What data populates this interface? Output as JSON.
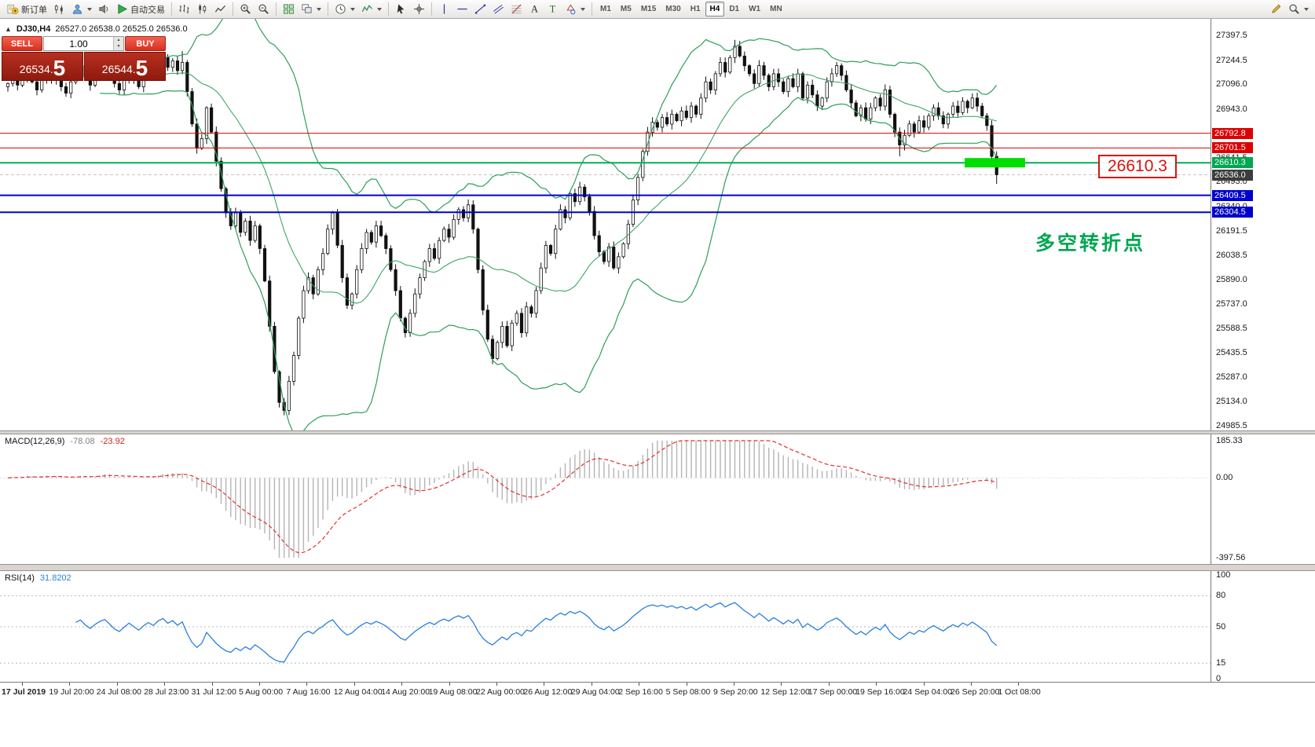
{
  "toolbar": {
    "groups": [
      {
        "name": "trade-group",
        "items": [
          {
            "name": "new-order-button",
            "icon": "new-order-icon",
            "label": "新订单"
          },
          {
            "name": "charts-button",
            "icon": "candles-icon"
          },
          {
            "name": "profiles-button",
            "icon": "person-icon",
            "caret": true
          },
          {
            "name": "alerts-button",
            "icon": "speaker-icon"
          },
          {
            "name": "autotrading-button",
            "icon": "play-icon",
            "label": "自动交易"
          }
        ]
      },
      {
        "name": "chart-type-group",
        "items": [
          {
            "name": "bar-chart-button",
            "icon": "bars-icon"
          },
          {
            "name": "candlestick-chart-button",
            "icon": "candles2-icon"
          },
          {
            "name": "line-chart-button",
            "icon": "linechart-icon"
          }
        ]
      },
      {
        "name": "zoom-group",
        "items": [
          {
            "name": "zoom-in-button",
            "icon": "zoom-in-icon"
          },
          {
            "name": "zoom-out-button",
            "icon": "zoom-out-icon"
          }
        ]
      },
      {
        "name": "window-group",
        "items": [
          {
            "name": "tile-windows-button",
            "icon": "grid-icon"
          },
          {
            "name": "arrange-windows-button",
            "icon": "cascade-icon",
            "caret": true
          }
        ]
      },
      {
        "name": "insert-group",
        "items": [
          {
            "name": "period-button",
            "icon": "clock-icon",
            "caret": true
          },
          {
            "name": "indicators-button",
            "icon": "indicator-icon",
            "caret": true
          }
        ]
      },
      {
        "name": "pointer-group",
        "items": [
          {
            "name": "cursor-button",
            "icon": "cursor-icon"
          },
          {
            "name": "crosshair-button",
            "icon": "crosshair-icon"
          }
        ]
      },
      {
        "name": "objects-group",
        "items": [
          {
            "name": "vertical-line-button",
            "icon": "vline-icon"
          },
          {
            "name": "horizontal-line-button",
            "icon": "hline-icon"
          },
          {
            "name": "trendline-button",
            "icon": "trendline-icon"
          },
          {
            "name": "channel-button",
            "icon": "channel-icon"
          },
          {
            "name": "fibonacci-button",
            "icon": "fibo-icon"
          },
          {
            "name": "text-button",
            "icon": "text-icon"
          },
          {
            "name": "label-button",
            "icon": "label-icon"
          },
          {
            "name": "shapes-button",
            "icon": "shapes-icon",
            "caret": true
          }
        ]
      }
    ],
    "timeframes": [
      "M1",
      "M5",
      "M15",
      "M30",
      "H1",
      "H4",
      "D1",
      "W1",
      "MN"
    ],
    "active_timeframe": "H4",
    "right_items": [
      {
        "name": "edit-button",
        "icon": "pencil-icon"
      },
      {
        "name": "quick-search-button",
        "icon": "search-icon",
        "caret": true
      }
    ]
  },
  "chart_header": {
    "symbol": "DJ30,H4",
    "ohlc": "26527.0 26538.0 26525.0 26536.0"
  },
  "trade_panel": {
    "sell_label": "SELL",
    "buy_label": "BUY",
    "volume": "1.00",
    "sell_price": {
      "small": "26534.",
      "big": "5"
    },
    "buy_price": {
      "small": "26544.",
      "big": "5"
    }
  },
  "annotations": {
    "callout": "26610.3",
    "turning_point": "多空转折点",
    "highlight": {
      "price": 26610.3,
      "x": 1228,
      "width": 77,
      "height": 12,
      "color": "#00dd00"
    }
  },
  "price_axis": {
    "grid_labels": [
      27397.5,
      27244.5,
      27096.0,
      26943.0,
      26641.5,
      26493.0,
      26340.0,
      26191.5,
      26038.5,
      25890.0,
      25737.0,
      25588.5,
      25435.5,
      25287.0,
      25134.0,
      24985.5
    ],
    "tags": [
      {
        "price": 26792.8,
        "label": "26792.8",
        "color": "#dd0000"
      },
      {
        "price": 26701.5,
        "label": "26701.5",
        "color": "#dd0000"
      },
      {
        "price": 26610.3,
        "label": "26610.3",
        "color": "#00a651"
      },
      {
        "price": 26536.0,
        "label": "26536.0",
        "color": "#3c3c3c"
      },
      {
        "price": 26409.5,
        "label": "26409.5",
        "color": "#0000cc"
      },
      {
        "price": 26304.5,
        "label": "26304.5",
        "color": "#0000cc"
      }
    ]
  },
  "indicators": {
    "macd": {
      "label": "MACD(12,26,9)",
      "value_main": "-78.08",
      "value_signal": "-23.92",
      "axis": [
        "185.33",
        "0.00",
        "-397.56"
      ],
      "range": {
        "max": 185.33,
        "min": -397.56
      },
      "params": {
        "fast": 12,
        "slow": 26,
        "signal": 9
      }
    },
    "rsi": {
      "label": "RSI(14)",
      "value": "31.8202",
      "axis": [
        100,
        80,
        50,
        15,
        0
      ],
      "levels": [
        80,
        50,
        15
      ],
      "period": 14
    }
  },
  "time_axis": [
    "17 Jul 2019",
    "19 Jul 20:00",
    "24 Jul 08:00",
    "28 Jul 23:00",
    "31 Jul 12:00",
    "5 Aug 00:00",
    "7 Aug 16:00",
    "12 Aug 04:00",
    "14 Aug 20:00",
    "19 Aug 08:00",
    "22 Aug 00:00",
    "26 Aug 12:00",
    "29 Aug 04:00",
    "2 Sep 16:00",
    "5 Sep 08:00",
    "9 Sep 20:00",
    "12 Sep 12:00",
    "17 Sep 00:00",
    "19 Sep 16:00",
    "24 Sep 04:00",
    "26 Sep 20:00",
    "1 Oct 08:00"
  ],
  "chart_data": {
    "type": "candlestick",
    "symbol": "DJ30",
    "period": "H4",
    "ohlc_display": {
      "open": 26527.0,
      "high": 26538.0,
      "low": 26525.0,
      "close": 26536.0
    },
    "y_range": {
      "top": 27397.5,
      "bottom": 24985.5
    },
    "current_price": 26536.0,
    "open_first": 27080,
    "closes": [
      27100,
      27160,
      27090,
      27140,
      27190,
      27110,
      27060,
      27130,
      27180,
      27120,
      27150,
      27080,
      27040,
      27110,
      27170,
      27210,
      27140,
      27090,
      27150,
      27200,
      27230,
      27170,
      27100,
      27060,
      27120,
      27180,
      27130,
      27080,
      27140,
      27190,
      27150,
      27220,
      27260,
      27200,
      27240,
      27180,
      27230,
      27050,
      26850,
      26700,
      26760,
      26950,
      26800,
      26620,
      26450,
      26300,
      26220,
      26300,
      26180,
      26250,
      26130,
      26220,
      26080,
      25880,
      25600,
      25320,
      25130,
      25080,
      25260,
      25420,
      25650,
      25820,
      25900,
      25800,
      25950,
      26050,
      26200,
      26300,
      26100,
      25900,
      25730,
      25800,
      25950,
      26080,
      26180,
      26120,
      26220,
      26160,
      26080,
      25950,
      25820,
      25650,
      25560,
      25680,
      25800,
      25900,
      26000,
      26080,
      26020,
      26130,
      26200,
      26150,
      26260,
      26320,
      26270,
      26350,
      26200,
      25950,
      25700,
      25520,
      25400,
      25500,
      25600,
      25480,
      25620,
      25680,
      25560,
      25720,
      25680,
      25820,
      25960,
      26100,
      26050,
      26200,
      26320,
      26270,
      26420,
      26370,
      26460,
      26400,
      26310,
      26160,
      26060,
      26000,
      26090,
      25960,
      26030,
      26110,
      26230,
      26380,
      26520,
      26680,
      26800,
      26860,
      26830,
      26890,
      26850,
      26910,
      26870,
      26930,
      26890,
      26960,
      26910,
      27010,
      27110,
      27060,
      27160,
      27230,
      27170,
      27260,
      27330,
      27270,
      27210,
      27160,
      27100,
      27210,
      27150,
      27080,
      27160,
      27110,
      27050,
      27130,
      27080,
      27160,
      27010,
      27090,
      27030,
      26960,
      27010,
      27110,
      27160,
      27210,
      27150,
      27060,
      26980,
      26900,
      26950,
      26880,
      26950,
      27010,
      26960,
      27060,
      26910,
      26800,
      26720,
      26780,
      26850,
      26800,
      26870,
      26830,
      26900,
      26950,
      26900,
      26850,
      26910,
      26960,
      26920,
      26990,
      26950,
      27010,
      26960,
      26900,
      26840,
      26650,
      26536
    ],
    "high_overrides": {
      "36": 27300,
      "150": 27370
    },
    "low_overrides": {
      "57": 25050,
      "184": 26650,
      "204": 26480
    },
    "hlines": [
      {
        "price": 26792.8,
        "color": "#dd0000",
        "width": 1
      },
      {
        "price": 26701.5,
        "color": "#dd0000",
        "width": 1
      },
      {
        "price": 26610.3,
        "color": "#00b050",
        "width": 2
      },
      {
        "price": 26409.5,
        "color": "#0000cc",
        "width": 2
      },
      {
        "price": 26304.5,
        "color": "#0000cc",
        "width": 2
      }
    ],
    "bollinger": {
      "period": 20,
      "deviation": 2,
      "color": "#2e9e5b"
    }
  }
}
